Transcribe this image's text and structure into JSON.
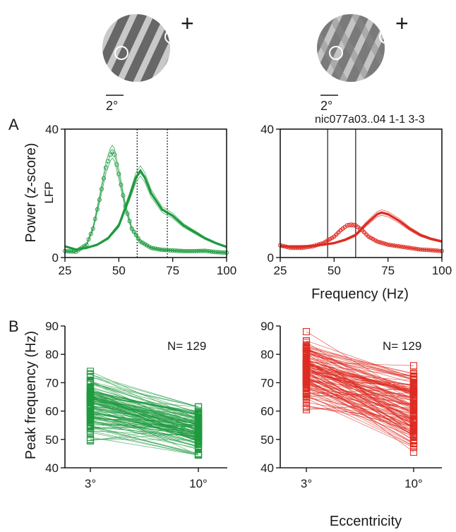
{
  "colors": {
    "green": "#1e9a3f",
    "red": "#dd2c22",
    "stim_dark": "#666666",
    "stim_light": "#c8c8c8"
  },
  "panel_labels": [
    "A",
    "B"
  ],
  "stimuli": [
    {
      "scale_label": "2°",
      "marker": "+"
    },
    {
      "scale_label": "2°",
      "marker": "+"
    }
  ],
  "recording_label": "nic077a03..04 1-1 3-3",
  "chart_data": [
    {
      "type": "line",
      "panel": "A",
      "color": "green",
      "ylabel": "Power (z-score)",
      "ylabel2": "LFP",
      "xlabel": "",
      "xlim": [
        25,
        100
      ],
      "ylim": [
        0,
        40
      ],
      "xticks": [
        25,
        50,
        75,
        100
      ],
      "yticks": [
        0,
        40
      ],
      "vlines": [
        {
          "x": 58.5,
          "style": "dotted"
        },
        {
          "x": 72.5,
          "style": "dotted"
        }
      ],
      "series": [
        {
          "style": "open-circles",
          "x": [
            25,
            30,
            35,
            38,
            41,
            44,
            46,
            47,
            48,
            50,
            53,
            56,
            60,
            65,
            70,
            75,
            80,
            85,
            90,
            95,
            100
          ],
          "y": [
            2,
            1.8,
            4,
            9,
            18,
            28,
            32,
            33,
            32,
            26,
            16,
            9,
            5,
            3,
            2.4,
            2.2,
            2,
            2,
            2.1,
            1.7,
            1.5
          ]
        },
        {
          "style": "filled-line",
          "x": [
            25,
            30,
            35,
            40,
            45,
            50,
            55,
            58,
            60,
            62,
            65,
            70,
            75,
            80,
            85,
            90,
            95,
            100
          ],
          "y": [
            3.5,
            2.5,
            3,
            4,
            6,
            10,
            19,
            25,
            27,
            25,
            20,
            15,
            13,
            10,
            8,
            6,
            4.5,
            3.3
          ]
        }
      ]
    },
    {
      "type": "line",
      "panel": "A",
      "color": "red",
      "ylabel": "",
      "xlabel": "Frequency (Hz)",
      "xlim": [
        25,
        100
      ],
      "ylim": [
        0,
        40
      ],
      "xticks": [
        25,
        50,
        75,
        100
      ],
      "yticks": [
        0,
        40
      ],
      "vlines": [
        {
          "x": 47,
          "style": "solid"
        },
        {
          "x": 60,
          "style": "solid"
        }
      ],
      "series": [
        {
          "style": "open-circles",
          "x": [
            25,
            30,
            35,
            40,
            45,
            50,
            53,
            56,
            58,
            60,
            63,
            66,
            70,
            75,
            80,
            85,
            90,
            95,
            100
          ],
          "y": [
            3.8,
            3,
            3,
            3.5,
            4.5,
            6.5,
            8.5,
            10,
            10.2,
            10,
            8.5,
            6.5,
            5,
            4,
            3.5,
            3,
            2.5,
            2.3,
            2
          ]
        },
        {
          "style": "filled-line",
          "x": [
            25,
            30,
            35,
            40,
            45,
            50,
            55,
            60,
            65,
            70,
            72,
            75,
            80,
            85,
            90,
            95,
            100
          ],
          "y": [
            3.5,
            3.5,
            3.5,
            3.6,
            4,
            4.5,
            5.5,
            7,
            10.5,
            13.5,
            14,
            13.5,
            11.5,
            9,
            7,
            5.8,
            5
          ]
        }
      ]
    },
    {
      "type": "paired-line",
      "panel": "B",
      "color": "green",
      "ylabel": "Peak frequency (Hz)",
      "xlabel": "",
      "categories": [
        "3°",
        "10°"
      ],
      "ylim": [
        40,
        90
      ],
      "yticks": [
        40,
        50,
        60,
        70,
        80,
        90
      ],
      "n_label": "N= 129",
      "range_3deg": [
        49.5,
        74
      ],
      "range_10deg": [
        44.5,
        61.5
      ]
    },
    {
      "type": "paired-line",
      "panel": "B",
      "color": "red",
      "ylabel": "",
      "xlabel": "Eccentricity",
      "categories": [
        "3°",
        "10°"
      ],
      "ylim": [
        40,
        90
      ],
      "yticks": [
        40,
        50,
        60,
        70,
        80,
        90
      ],
      "n_label": "N= 129",
      "range_3deg": [
        60.5,
        88
      ],
      "range_10deg": [
        45.5,
        76
      ]
    }
  ]
}
